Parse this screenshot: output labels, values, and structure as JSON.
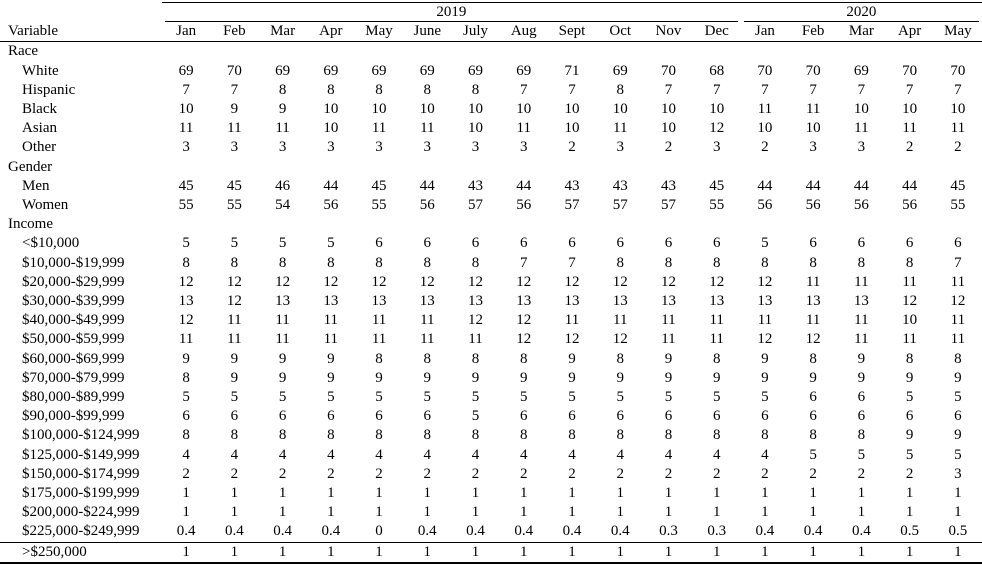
{
  "table": {
    "corner_label": "Variable",
    "year_groups": [
      {
        "label": "2019",
        "months": [
          "Jan",
          "Feb",
          "Mar",
          "Apr",
          "May",
          "June",
          "July",
          "Aug",
          "Sept",
          "Oct",
          "Nov",
          "Dec"
        ]
      },
      {
        "label": "2020",
        "months": [
          "Jan",
          "Feb",
          "Mar",
          "Apr",
          "May"
        ]
      }
    ],
    "sections": [
      {
        "header": "Race",
        "rows": [
          {
            "label": "White",
            "values": [
              "69",
              "70",
              "69",
              "69",
              "69",
              "69",
              "69",
              "69",
              "71",
              "69",
              "70",
              "68",
              "70",
              "70",
              "69",
              "70",
              "70"
            ]
          },
          {
            "label": "Hispanic",
            "values": [
              "7",
              "7",
              "8",
              "8",
              "8",
              "8",
              "8",
              "7",
              "7",
              "8",
              "7",
              "7",
              "7",
              "7",
              "7",
              "7",
              "7"
            ]
          },
          {
            "label": "Black",
            "values": [
              "10",
              "9",
              "9",
              "10",
              "10",
              "10",
              "10",
              "10",
              "10",
              "10",
              "10",
              "10",
              "11",
              "11",
              "10",
              "10",
              "10"
            ]
          },
          {
            "label": "Asian",
            "values": [
              "11",
              "11",
              "11",
              "10",
              "11",
              "11",
              "10",
              "11",
              "10",
              "11",
              "10",
              "12",
              "10",
              "10",
              "11",
              "11",
              "11"
            ]
          },
          {
            "label": "Other",
            "values": [
              "3",
              "3",
              "3",
              "3",
              "3",
              "3",
              "3",
              "3",
              "2",
              "3",
              "2",
              "3",
              "2",
              "3",
              "3",
              "2",
              "2"
            ]
          }
        ]
      },
      {
        "header": "Gender",
        "rows": [
          {
            "label": "Men",
            "values": [
              "45",
              "45",
              "46",
              "44",
              "45",
              "44",
              "43",
              "44",
              "43",
              "43",
              "43",
              "45",
              "44",
              "44",
              "44",
              "44",
              "45"
            ]
          },
          {
            "label": "Women",
            "values": [
              "55",
              "55",
              "54",
              "56",
              "55",
              "56",
              "57",
              "56",
              "57",
              "57",
              "57",
              "55",
              "56",
              "56",
              "56",
              "56",
              "55"
            ]
          }
        ]
      },
      {
        "header": "Income",
        "rows": [
          {
            "label": "<$10,000",
            "values": [
              "5",
              "5",
              "5",
              "5",
              "6",
              "6",
              "6",
              "6",
              "6",
              "6",
              "6",
              "6",
              "5",
              "6",
              "6",
              "6",
              "6"
            ]
          },
          {
            "label": "$10,000-$19,999",
            "values": [
              "8",
              "8",
              "8",
              "8",
              "8",
              "8",
              "8",
              "7",
              "7",
              "8",
              "8",
              "8",
              "8",
              "8",
              "8",
              "8",
              "7"
            ]
          },
          {
            "label": "$20,000-$29,999",
            "values": [
              "12",
              "12",
              "12",
              "12",
              "12",
              "12",
              "12",
              "12",
              "12",
              "12",
              "12",
              "12",
              "12",
              "11",
              "11",
              "11",
              "11"
            ]
          },
          {
            "label": "$30,000-$39,999",
            "values": [
              "13",
              "12",
              "13",
              "13",
              "13",
              "13",
              "13",
              "13",
              "13",
              "13",
              "13",
              "13",
              "13",
              "13",
              "13",
              "12",
              "12"
            ]
          },
          {
            "label": "$40,000-$49,999",
            "values": [
              "12",
              "11",
              "11",
              "11",
              "11",
              "11",
              "12",
              "12",
              "11",
              "11",
              "11",
              "11",
              "11",
              "11",
              "11",
              "10",
              "11"
            ]
          },
          {
            "label": "$50,000-$59,999",
            "values": [
              "11",
              "11",
              "11",
              "11",
              "11",
              "11",
              "11",
              "12",
              "12",
              "12",
              "11",
              "11",
              "12",
              "12",
              "11",
              "11",
              "11"
            ]
          },
          {
            "label": "$60,000-$69,999",
            "values": [
              "9",
              "9",
              "9",
              "9",
              "8",
              "8",
              "8",
              "8",
              "9",
              "8",
              "9",
              "8",
              "9",
              "8",
              "9",
              "8",
              "8"
            ]
          },
          {
            "label": "$70,000-$79,999",
            "values": [
              "8",
              "9",
              "9",
              "9",
              "9",
              "9",
              "9",
              "9",
              "9",
              "9",
              "9",
              "9",
              "9",
              "9",
              "9",
              "9",
              "9"
            ]
          },
          {
            "label": "$80,000-$89,999",
            "values": [
              "5",
              "5",
              "5",
              "5",
              "5",
              "5",
              "5",
              "5",
              "5",
              "5",
              "5",
              "5",
              "5",
              "6",
              "6",
              "5",
              "5"
            ]
          },
          {
            "label": "$90,000-$99,999",
            "values": [
              "6",
              "6",
              "6",
              "6",
              "6",
              "6",
              "5",
              "6",
              "6",
              "6",
              "6",
              "6",
              "6",
              "6",
              "6",
              "6",
              "6"
            ]
          },
          {
            "label": "$100,000-$124,999",
            "values": [
              "8",
              "8",
              "8",
              "8",
              "8",
              "8",
              "8",
              "8",
              "8",
              "8",
              "8",
              "8",
              "8",
              "8",
              "8",
              "9",
              "9"
            ]
          },
          {
            "label": "$125,000-$149,999",
            "values": [
              "4",
              "4",
              "4",
              "4",
              "4",
              "4",
              "4",
              "4",
              "4",
              "4",
              "4",
              "4",
              "4",
              "5",
              "5",
              "5",
              "5"
            ]
          },
          {
            "label": "$150,000-$174,999",
            "values": [
              "2",
              "2",
              "2",
              "2",
              "2",
              "2",
              "2",
              "2",
              "2",
              "2",
              "2",
              "2",
              "2",
              "2",
              "2",
              "2",
              "3"
            ]
          },
          {
            "label": "$175,000-$199,999",
            "values": [
              "1",
              "1",
              "1",
              "1",
              "1",
              "1",
              "1",
              "1",
              "1",
              "1",
              "1",
              "1",
              "1",
              "1",
              "1",
              "1",
              "1"
            ]
          },
          {
            "label": "$200,000-$224,999",
            "values": [
              "1",
              "1",
              "1",
              "1",
              "1",
              "1",
              "1",
              "1",
              "1",
              "1",
              "1",
              "1",
              "1",
              "1",
              "1",
              "1",
              "1"
            ]
          },
          {
            "label": "$225,000-$249,999",
            "values": [
              "0.4",
              "0.4",
              "0.4",
              "0.4",
              "0",
              "0.4",
              "0.4",
              "0.4",
              "0.4",
              "0.4",
              "0.3",
              "0.3",
              "0.4",
              "0.4",
              "0.4",
              "0.5",
              "0.5"
            ]
          },
          {
            "label": ">$250,000",
            "values": [
              "1",
              "1",
              "1",
              "1",
              "1",
              "1",
              "1",
              "1",
              "1",
              "1",
              "1",
              "1",
              "1",
              "1",
              "1",
              "1",
              "1"
            ]
          }
        ]
      }
    ]
  }
}
